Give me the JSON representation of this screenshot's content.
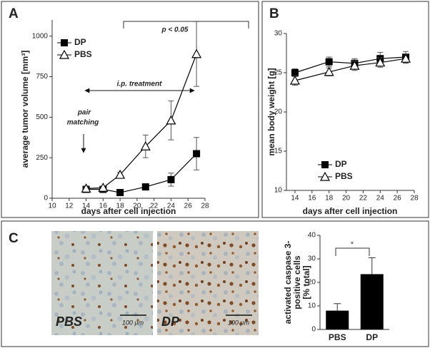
{
  "chart_data": [
    {
      "type": "line",
      "panel": "A",
      "ylabel": "average tumor volume [mm³]",
      "xlabel": "days after cell injection",
      "x": [
        14,
        16,
        18,
        21,
        24,
        27
      ],
      "series": [
        {
          "name": "DP",
          "color": "#000000",
          "marker": "square",
          "values": [
            55,
            55,
            35,
            70,
            115,
            275
          ],
          "errors": [
            10,
            10,
            8,
            15,
            40,
            100
          ]
        },
        {
          "name": "PBS",
          "color": "#000000",
          "marker": "triangle",
          "values": [
            60,
            65,
            145,
            320,
            480,
            890
          ],
          "errors": [
            10,
            10,
            15,
            70,
            120,
            200
          ]
        }
      ],
      "xlim": [
        10,
        28
      ],
      "xticks": [
        10,
        12,
        14,
        16,
        18,
        20,
        22,
        24,
        26,
        28
      ],
      "ylim": [
        0,
        1100
      ],
      "yticks": [
        0,
        250,
        500,
        750,
        1000
      ],
      "annotations": {
        "p_value": "p < 0.05",
        "treatment": "i.p. treatment",
        "matching": [
          "pair",
          "matching"
        ]
      }
    },
    {
      "type": "line",
      "panel": "B",
      "ylabel": "mean body weight [g]",
      "xlabel": "days after cell injection",
      "x": [
        14,
        18,
        21,
        24,
        27
      ],
      "series": [
        {
          "name": "DP",
          "color": "#000000",
          "marker": "square",
          "values": [
            25,
            26.4,
            26.2,
            26.8,
            27
          ],
          "errors": [
            0.5,
            0.6,
            0.6,
            0.8,
            0.7
          ]
        },
        {
          "name": "PBS",
          "color": "#000000",
          "marker": "triangle",
          "values": [
            24,
            25.1,
            25.9,
            26.3,
            26.8
          ],
          "errors": [
            0.6,
            0.5,
            0.6,
            0.6,
            0.6
          ]
        }
      ],
      "xlim": [
        13,
        28
      ],
      "xticks": [
        14,
        16,
        18,
        20,
        22,
        24,
        26,
        28
      ],
      "ylim": [
        10,
        30
      ],
      "yticks": [
        10,
        15,
        20,
        25,
        30
      ]
    },
    {
      "type": "bar",
      "panel": "C",
      "ylabel": [
        "activated caspase 3-",
        "positive cells",
        "[% total]"
      ],
      "categories": [
        "PBS",
        "DP"
      ],
      "values": [
        8,
        23.5
      ],
      "errors": [
        3,
        7
      ],
      "color": "#000000",
      "ylim": [
        0,
        40
      ],
      "yticks": [
        0,
        10,
        20,
        30,
        40
      ],
      "annotations": {
        "significance": "*"
      }
    }
  ],
  "micrographs": [
    {
      "label": "PBS",
      "scale_bar": "100 µm"
    },
    {
      "label": "DP",
      "scale_bar": "100 µm"
    }
  ]
}
